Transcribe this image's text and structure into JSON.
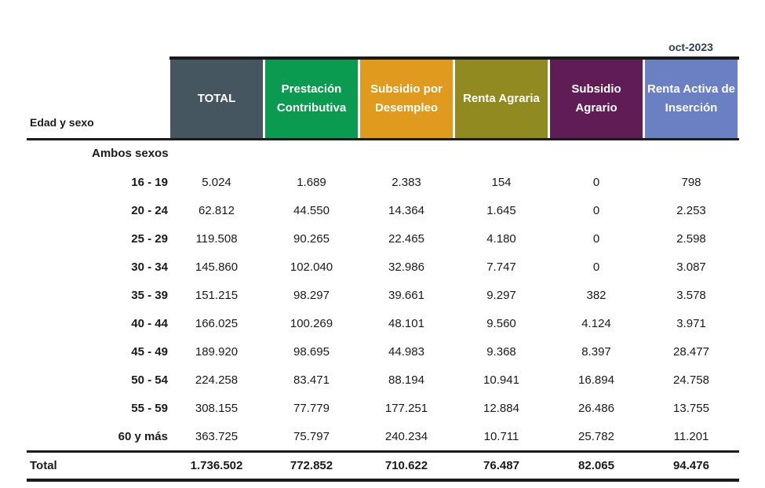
{
  "date": "oct-2023",
  "row_header": "Edad y sexo",
  "columns": [
    {
      "label": "TOTAL",
      "color": "#455660"
    },
    {
      "label": "Prestación Contributiva",
      "color": "#0a9a50"
    },
    {
      "label": "Subsidio por Desempleo",
      "color": "#e09a1e"
    },
    {
      "label": "Renta Agraria",
      "color": "#908a20"
    },
    {
      "label": "Subsidio Agrario",
      "color": "#601c54"
    },
    {
      "label": "Renta Activa de Inserción",
      "color": "#6a80c2"
    }
  ],
  "group_label": "Ambos sexos",
  "rows": [
    {
      "label": "16 - 19",
      "values": [
        "5.024",
        "1.689",
        "2.383",
        "154",
        "0",
        "798"
      ]
    },
    {
      "label": "20 - 24",
      "values": [
        "62.812",
        "44.550",
        "14.364",
        "1.645",
        "0",
        "2.253"
      ]
    },
    {
      "label": "25 - 29",
      "values": [
        "119.508",
        "90.265",
        "22.465",
        "4.180",
        "0",
        "2.598"
      ]
    },
    {
      "label": "30 - 34",
      "values": [
        "145.860",
        "102.040",
        "32.986",
        "7.747",
        "0",
        "3.087"
      ]
    },
    {
      "label": "35 - 39",
      "values": [
        "151.215",
        "98.297",
        "39.661",
        "9.297",
        "382",
        "3.578"
      ]
    },
    {
      "label": "40 - 44",
      "values": [
        "166.025",
        "100.269",
        "48.101",
        "9.560",
        "4.124",
        "3.971"
      ]
    },
    {
      "label": "45 - 49",
      "values": [
        "189.920",
        "98.695",
        "44.983",
        "9.368",
        "8.397",
        "28.477"
      ]
    },
    {
      "label": "50 - 54",
      "values": [
        "224.258",
        "83.471",
        "88.194",
        "10.941",
        "16.894",
        "24.758"
      ]
    },
    {
      "label": "55 - 59",
      "values": [
        "308.155",
        "77.779",
        "177.251",
        "12.884",
        "26.486",
        "13.755"
      ]
    },
    {
      "label": "60 y más",
      "values": [
        "363.725",
        "75.797",
        "240.234",
        "10.711",
        "25.782",
        "11.201"
      ]
    }
  ],
  "total": {
    "label": "Total",
    "values": [
      "1.736.502",
      "772.852",
      "710.622",
      "76.487",
      "82.065",
      "94.476"
    ]
  }
}
